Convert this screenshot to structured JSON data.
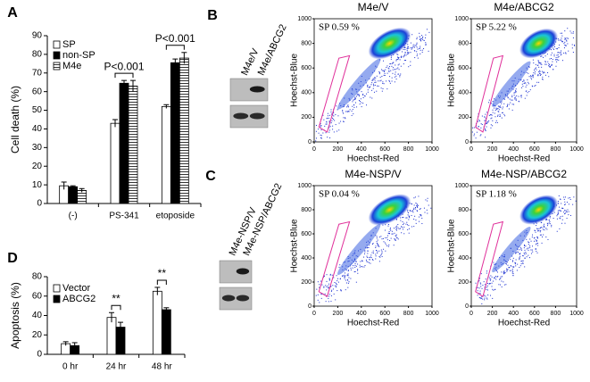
{
  "chart_data": [
    {
      "type": "bar",
      "y_label": "Cell death (%)",
      "categories": [
        "(-)",
        "PS-341",
        "etoposide"
      ],
      "series": [
        {
          "name": "SP",
          "color": "#ffffff",
          "values": [
            9.5,
            43,
            52
          ],
          "errors": [
            2,
            2,
            1
          ]
        },
        {
          "name": "non-SP",
          "color": "#000000",
          "values": [
            9,
            64.5,
            75.5
          ],
          "errors": [
            0.5,
            1.5,
            2
          ]
        },
        {
          "name": "M4e",
          "color": "#ffffff",
          "hatch": true,
          "values": [
            7,
            63,
            78
          ],
          "errors": [
            1,
            3,
            3
          ]
        }
      ],
      "annotations": [
        {
          "text": "P<0.001",
          "category": 1
        },
        {
          "text": "P<0.001",
          "category": 2
        }
      ],
      "ylim": [
        0,
        90
      ],
      "yticks": [
        0,
        10,
        20,
        30,
        40,
        50,
        60,
        70,
        80,
        90
      ]
    },
    {
      "type": "bar",
      "y_label": "Apoptosis (%)",
      "categories": [
        "0 hr",
        "24 hr",
        "48 hr"
      ],
      "series": [
        {
          "name": "Vector",
          "color": "#ffffff",
          "values": [
            11,
            38,
            65
          ],
          "errors": [
            2,
            5,
            4
          ]
        },
        {
          "name": "ABCG2",
          "color": "#000000",
          "values": [
            9,
            28,
            46
          ],
          "errors": [
            3,
            5,
            2
          ]
        }
      ],
      "annotations": [
        {
          "text": "**",
          "category": 1
        },
        {
          "text": "**",
          "category": 2
        }
      ],
      "ylim": [
        0,
        80
      ],
      "yticks": [
        0,
        20,
        40,
        60,
        80
      ]
    }
  ],
  "panel_labels": [
    "A",
    "B",
    "C",
    "D"
  ],
  "flow": {
    "x_label": "Hoechst-Red",
    "y_label": "Hoechst-Blue",
    "xlim": [
      0,
      1000
    ],
    "ylim": [
      0,
      1000
    ],
    "xticks": [
      0,
      200,
      400,
      600,
      800,
      1000
    ],
    "yticks": [
      0,
      200,
      400,
      600,
      800,
      1000
    ],
    "plots": [
      {
        "title": "M4e/V",
        "sp_label": "SP 0.59 %"
      },
      {
        "title": "M4e/ABCG2",
        "sp_label": "SP 5.22 %"
      },
      {
        "title": "M4e-NSP/V",
        "sp_label": "SP 0.04 %"
      },
      {
        "title": "M4e-NSP/ABCG2",
        "sp_label": "SP 1.18 %"
      }
    ]
  },
  "blots": [
    {
      "lanes": [
        "M4e/V",
        "M4e/ABCG2"
      ]
    },
    {
      "lanes": [
        "M4e-NSP/V",
        "M4e-NSP/ABCG2"
      ]
    }
  ]
}
